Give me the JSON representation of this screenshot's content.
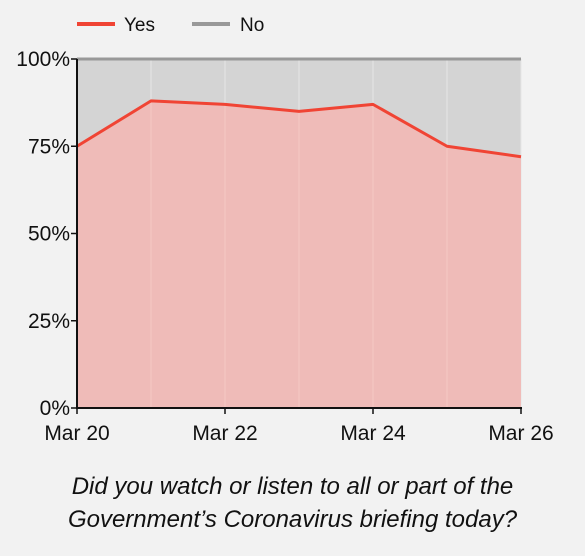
{
  "chart_data": {
    "type": "area",
    "stacked": true,
    "x": [
      "Mar 20",
      "Mar 21",
      "Mar 22",
      "Mar 23",
      "Mar 24",
      "Mar 25",
      "Mar 26"
    ],
    "series": [
      {
        "name": "Yes",
        "values": [
          75,
          88,
          87,
          85,
          87,
          75,
          72
        ],
        "line_color": "#f04434",
        "fill_color": "#f2b8b5"
      },
      {
        "name": "No",
        "values": [
          25,
          12,
          13,
          15,
          13,
          25,
          28
        ],
        "line_color": "#999999",
        "fill_color": "#d4d4d4"
      }
    ],
    "x_tick_labels": [
      "Mar 20",
      "Mar 22",
      "Mar 24",
      "Mar 26"
    ],
    "y_tick_labels": [
      "0%",
      "25%",
      "50%",
      "75%",
      "100%"
    ],
    "ylim": [
      0,
      100
    ],
    "y_ticks": [
      0,
      25,
      50,
      75,
      100
    ],
    "legend_position": "top-left",
    "grid": "vertical",
    "caption_lines": [
      "Did you watch or listen to all or part of the",
      "Government’s Coronavirus briefing today?"
    ]
  }
}
